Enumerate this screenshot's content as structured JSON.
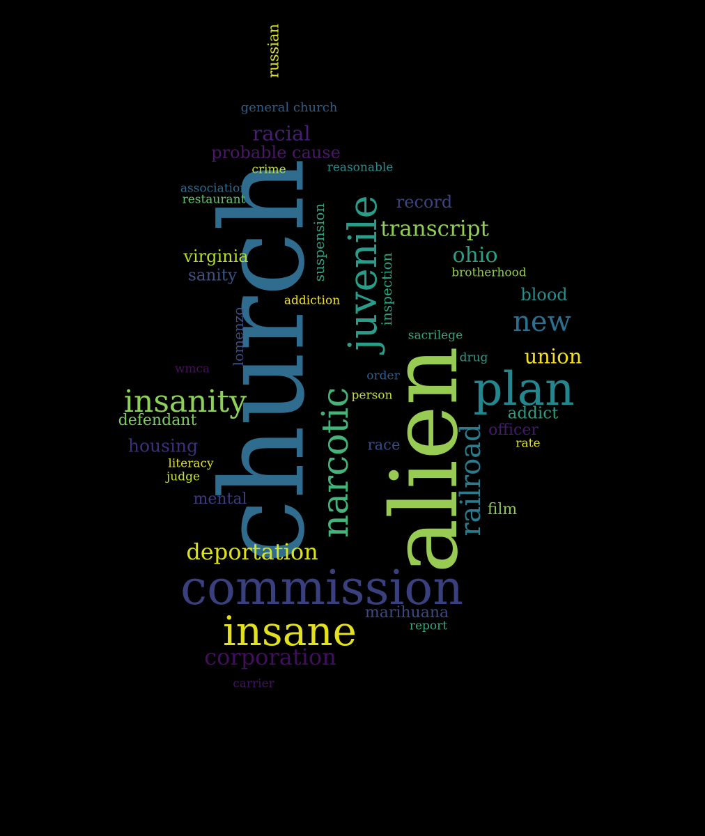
{
  "words": [
    {
      "key": "church",
      "text": "church",
      "color": "#2f6c8e"
    },
    {
      "key": "alien",
      "text": "alien",
      "color": "#98cb53"
    },
    {
      "key": "commission",
      "text": "commission",
      "color": "#3a3f7e"
    },
    {
      "key": "plan",
      "text": "plan",
      "color": "#24868e"
    },
    {
      "key": "insane",
      "text": "insane",
      "color": "#e3e020"
    },
    {
      "key": "juvenile",
      "text": "juvenile",
      "color": "#2a9d8a"
    },
    {
      "key": "narcotic",
      "text": "narcotic",
      "color": "#45b47a"
    },
    {
      "key": "insanity",
      "text": "insanity",
      "color": "#8ed15a"
    },
    {
      "key": "railroad",
      "text": "railroad",
      "color": "#2b7b8e"
    },
    {
      "key": "new",
      "text": "new",
      "color": "#2c6f8e"
    },
    {
      "key": "corporation",
      "text": "corporation",
      "color": "#440e5e"
    },
    {
      "key": "deportation",
      "text": "deportation",
      "color": "#dde318"
    },
    {
      "key": "transcript",
      "text": "transcript",
      "color": "#8ed04f"
    },
    {
      "key": "ohio",
      "text": "ohio",
      "color": "#27a088"
    },
    {
      "key": "racial",
      "text": "racial",
      "color": "#481f70"
    },
    {
      "key": "probable_cause",
      "text": "probable cause",
      "color": "#4b1768"
    },
    {
      "key": "union",
      "text": "union",
      "color": "#f4e11c"
    },
    {
      "key": "housing",
      "text": "housing",
      "color": "#3f2f7e"
    },
    {
      "key": "marihuana",
      "text": "marihuana",
      "color": "#3a4a85"
    },
    {
      "key": "record",
      "text": "record",
      "color": "#3b4484"
    },
    {
      "key": "blood",
      "text": "blood",
      "color": "#22908d"
    },
    {
      "key": "virginia",
      "text": "virginia",
      "color": "#b5dd2b"
    },
    {
      "key": "defendant",
      "text": "defendant",
      "color": "#7bcd5f"
    },
    {
      "key": "mental",
      "text": "mental",
      "color": "#3d3c80"
    },
    {
      "key": "sanity",
      "text": "sanity",
      "color": "#3b5588"
    },
    {
      "key": "addict",
      "text": "addict",
      "color": "#2e9c83"
    },
    {
      "key": "officer",
      "text": "officer",
      "color": "#441a6c"
    },
    {
      "key": "film",
      "text": "film",
      "color": "#8cc759"
    },
    {
      "key": "race",
      "text": "race",
      "color": "#334e8a"
    },
    {
      "key": "suspension",
      "text": "suspension",
      "color": "#32a083"
    },
    {
      "key": "inspection",
      "text": "inspection",
      "color": "#30a286"
    },
    {
      "key": "lomenzo",
      "text": "lomenzo",
      "color": "#3a4e88"
    },
    {
      "key": "russian",
      "text": "russian",
      "color": "#dfe32b"
    },
    {
      "key": "general_church",
      "text": "general church",
      "color": "#2f5e8b"
    },
    {
      "key": "crime",
      "text": "crime",
      "color": "#c4dd3b"
    },
    {
      "key": "reasonable",
      "text": "reasonable",
      "color": "#2b8b8c"
    },
    {
      "key": "association",
      "text": "association",
      "color": "#2b6b8e"
    },
    {
      "key": "restaurant",
      "text": "restaurant",
      "color": "#62c46b"
    },
    {
      "key": "brotherhood",
      "text": "brotherhood",
      "color": "#92cf52"
    },
    {
      "key": "addiction",
      "text": "addiction",
      "color": "#f2e11e"
    },
    {
      "key": "sacrilege",
      "text": "sacrilege",
      "color": "#35a57f"
    },
    {
      "key": "drug",
      "text": "drug",
      "color": "#2b9c88"
    },
    {
      "key": "order",
      "text": "order",
      "color": "#325f8c"
    },
    {
      "key": "person",
      "text": "person",
      "color": "#c3df3a"
    },
    {
      "key": "wmca",
      "text": "wmca",
      "color": "#470d5f"
    },
    {
      "key": "literacy",
      "text": "literacy",
      "color": "#dfe223"
    },
    {
      "key": "judge",
      "text": "judge",
      "color": "#c9e033"
    },
    {
      "key": "rate",
      "text": "rate",
      "color": "#e8e21f"
    },
    {
      "key": "report",
      "text": "report",
      "color": "#3ba584"
    },
    {
      "key": "carrier",
      "text": "carrier",
      "color": "#45125f"
    }
  ]
}
